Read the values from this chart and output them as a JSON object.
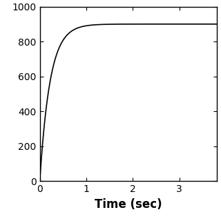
{
  "title": "",
  "xlabel": "Time (sec)",
  "ylabel": "",
  "xlim": [
    0,
    3.8
  ],
  "ylim": [
    0,
    1000
  ],
  "xticks": [
    0,
    1,
    2,
    3
  ],
  "yticks": [
    0,
    200,
    400,
    600,
    800,
    1000
  ],
  "V_max": 900,
  "tau": 0.22,
  "line_color": "#000000",
  "line_width": 1.2,
  "bg_color": "#ffffff",
  "xlabel_fontsize": 12,
  "tick_fontsize": 10,
  "figsize": [
    3.2,
    3.2
  ],
  "dpi": 100
}
